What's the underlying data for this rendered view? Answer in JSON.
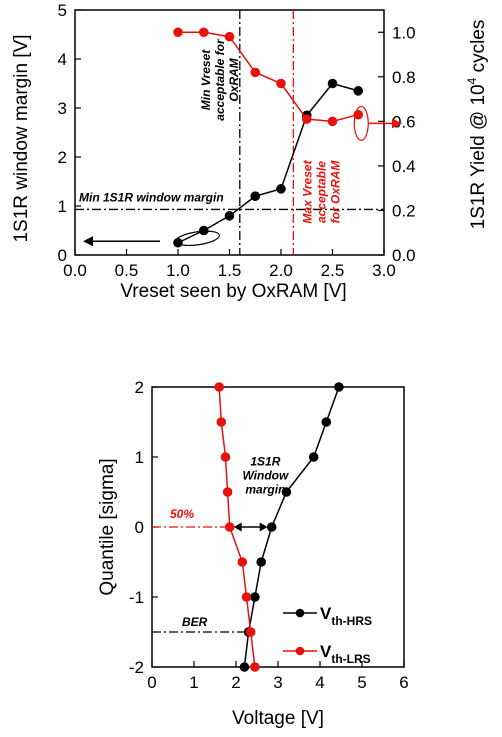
{
  "colors": {
    "black": "#000000",
    "red": "#e8120c"
  },
  "chart_data": [
    {
      "type": "line",
      "xlabel": "Vreset seen by OxRAM [V]",
      "ylabel": "1S1R window margin [V]",
      "y2label": "1S1R Yield @ 10",
      "y2label_sup": "4",
      "y2label_tail": " cycles",
      "xlim": [
        0.0,
        3.0
      ],
      "ylim": [
        0,
        5
      ],
      "y2lim": [
        0.0,
        1.1
      ],
      "xticks": [
        "0.0",
        "0.5",
        "1.0",
        "1.5",
        "2.0",
        "2.5",
        "3.0"
      ],
      "yticks": [
        "0",
        "1",
        "2",
        "3",
        "4",
        "5"
      ],
      "y2ticks": [
        "0.0",
        "0.2",
        "0.4",
        "0.6",
        "0.8",
        "1.0"
      ],
      "series": [
        {
          "axis": "left",
          "color": "#000000",
          "x": [
            1.0,
            1.25,
            1.5,
            1.75,
            2.0,
            2.25,
            2.5,
            2.75
          ],
          "y": [
            0.25,
            0.5,
            0.8,
            1.2,
            1.35,
            2.85,
            3.5,
            3.35
          ]
        },
        {
          "axis": "right",
          "color": "#e8120c",
          "x": [
            1.0,
            1.25,
            1.5,
            1.75,
            2.0,
            2.25,
            2.5,
            2.75
          ],
          "y": [
            1.0,
            1.0,
            0.98,
            0.82,
            0.77,
            0.61,
            0.6,
            0.63
          ]
        }
      ],
      "annotations": {
        "min_window_margin": {
          "value": 0.93,
          "label": "Min 1S1R window margin"
        },
        "min_vreset": {
          "value": 1.6,
          "lines": [
            "Min Vreset",
            "acceptable for",
            "OxRAM"
          ]
        },
        "max_vreset": {
          "value": 2.12,
          "lines": [
            "Max Vreset",
            "acceptable",
            "for OxRAM"
          ]
        }
      }
    },
    {
      "type": "line",
      "xlabel": "Voltage [V]",
      "ylabel": "Quantile [sigma]",
      "xlim": [
        0,
        6
      ],
      "ylim": [
        -2,
        2
      ],
      "xticks": [
        "0",
        "1",
        "2",
        "3",
        "4",
        "5",
        "6"
      ],
      "yticks": [
        "-2",
        "-1",
        "0",
        "1",
        "2"
      ],
      "series": [
        {
          "name": "V",
          "name_sub": "th-HRS",
          "color": "#000000",
          "x": [
            2.2,
            2.3,
            2.45,
            2.6,
            2.85,
            3.2,
            3.85,
            4.15,
            4.45
          ],
          "y": [
            -2.0,
            -1.5,
            -1.0,
            -0.5,
            0.0,
            0.5,
            1.0,
            1.5,
            2.0
          ]
        },
        {
          "name": "V",
          "name_sub": "th-LRS",
          "color": "#e8120c",
          "x": [
            2.45,
            2.35,
            2.25,
            2.15,
            1.85,
            1.8,
            1.75,
            1.65,
            1.6
          ],
          "y": [
            -2.0,
            -1.5,
            -1.0,
            -0.5,
            0.0,
            0.5,
            1.0,
            1.5,
            2.0
          ]
        }
      ],
      "annotations": {
        "ber": {
          "label": "BER",
          "value": -1.5
        },
        "median": {
          "label": "50%",
          "value": 0
        },
        "window": {
          "lines": [
            "1S1R",
            "Window",
            "margin"
          ]
        }
      }
    }
  ]
}
